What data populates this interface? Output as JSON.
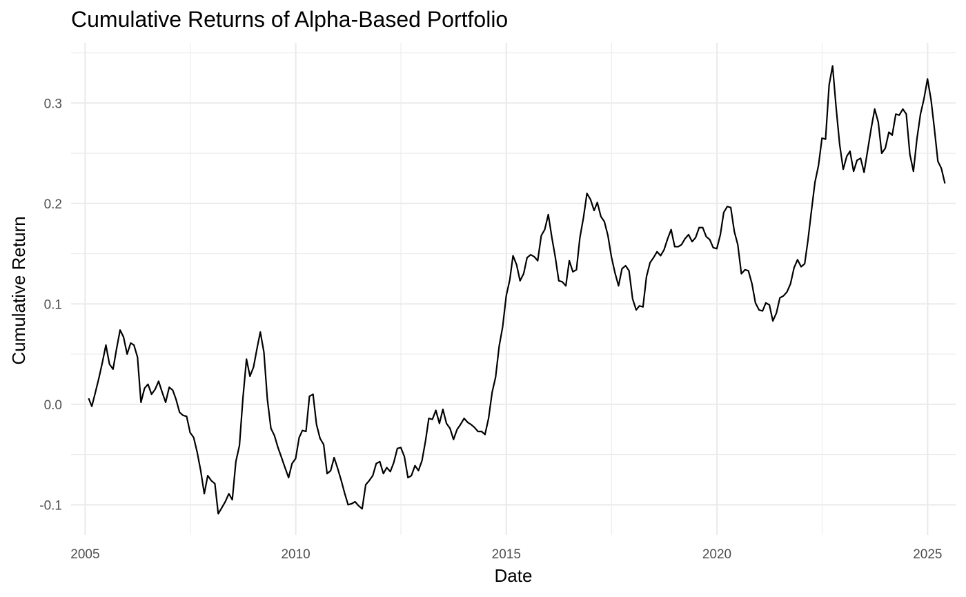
{
  "chart_data": {
    "type": "line",
    "title": "Cumulative Returns of Alpha-Based Portfolio",
    "xlabel": "Date",
    "ylabel": "Cumulative Return",
    "xlim": [
      "2004-09-01",
      "2025-09-01"
    ],
    "ylim": [
      -0.13,
      0.36
    ],
    "x_ticks": [
      {
        "value": "2005-01-01",
        "label": "2005"
      },
      {
        "value": "2010-01-01",
        "label": "2010"
      },
      {
        "value": "2015-01-01",
        "label": "2015"
      },
      {
        "value": "2020-01-01",
        "label": "2020"
      },
      {
        "value": "2025-01-01",
        "label": "2025"
      }
    ],
    "x_minor_ticks": [
      "2007-07-01",
      "2012-07-01",
      "2017-07-01",
      "2022-07-01"
    ],
    "y_ticks": [
      {
        "value": -0.1,
        "label": "-0.1"
      },
      {
        "value": 0.0,
        "label": "0.0"
      },
      {
        "value": 0.1,
        "label": "0.1"
      },
      {
        "value": 0.2,
        "label": "0.2"
      },
      {
        "value": 0.3,
        "label": "0.3"
      }
    ],
    "y_minor_ticks": [
      -0.05,
      0.05,
      0.15,
      0.25,
      0.35
    ],
    "grid": true,
    "legend": "none",
    "line_color": "#000000",
    "series": [
      {
        "x_start": "2005-01-31",
        "frequency": "monthly",
        "values": [
          0.006,
          -0.002,
          0.012,
          0.026,
          0.042,
          0.059,
          0.04,
          0.035,
          0.055,
          0.074,
          0.067,
          0.05,
          0.061,
          0.059,
          0.047,
          0.002,
          0.016,
          0.02,
          0.01,
          0.015,
          0.023,
          0.012,
          0.002,
          0.017,
          0.014,
          0.005,
          -0.008,
          -0.011,
          -0.012,
          -0.028,
          -0.033,
          -0.048,
          -0.066,
          -0.089,
          -0.071,
          -0.076,
          -0.079,
          -0.109,
          -0.103,
          -0.097,
          -0.089,
          -0.095,
          -0.057,
          -0.041,
          0.006,
          0.045,
          0.028,
          0.037,
          0.056,
          0.072,
          0.052,
          0.005,
          -0.024,
          -0.031,
          -0.043,
          -0.053,
          -0.063,
          -0.073,
          -0.059,
          -0.054,
          -0.033,
          -0.026,
          -0.027,
          0.008,
          0.01,
          -0.02,
          -0.034,
          -0.04,
          -0.069,
          -0.066,
          -0.053,
          -0.064,
          -0.076,
          -0.088,
          -0.1,
          -0.099,
          -0.097,
          -0.101,
          -0.104,
          -0.08,
          -0.076,
          -0.071,
          -0.059,
          -0.057,
          -0.069,
          -0.063,
          -0.067,
          -0.058,
          -0.044,
          -0.043,
          -0.052,
          -0.073,
          -0.071,
          -0.061,
          -0.066,
          -0.056,
          -0.036,
          -0.014,
          -0.015,
          -0.006,
          -0.019,
          -0.005,
          -0.019,
          -0.024,
          -0.035,
          -0.025,
          -0.02,
          -0.014,
          -0.018,
          -0.02,
          -0.023,
          -0.027,
          -0.027,
          -0.03,
          -0.014,
          0.012,
          0.027,
          0.058,
          0.077,
          0.108,
          0.124,
          0.148,
          0.139,
          0.123,
          0.13,
          0.146,
          0.149,
          0.147,
          0.143,
          0.168,
          0.174,
          0.189,
          0.166,
          0.147,
          0.123,
          0.122,
          0.118,
          0.143,
          0.132,
          0.134,
          0.166,
          0.186,
          0.21,
          0.204,
          0.193,
          0.201,
          0.187,
          0.182,
          0.168,
          0.147,
          0.131,
          0.118,
          0.135,
          0.138,
          0.133,
          0.105,
          0.094,
          0.098,
          0.097,
          0.127,
          0.141,
          0.146,
          0.152,
          0.148,
          0.154,
          0.165,
          0.174,
          0.157,
          0.157,
          0.159,
          0.165,
          0.169,
          0.162,
          0.166,
          0.176,
          0.176,
          0.167,
          0.164,
          0.156,
          0.155,
          0.169,
          0.191,
          0.197,
          0.196,
          0.172,
          0.159,
          0.13,
          0.134,
          0.133,
          0.12,
          0.101,
          0.094,
          0.093,
          0.101,
          0.099,
          0.083,
          0.091,
          0.106,
          0.108,
          0.112,
          0.12,
          0.136,
          0.144,
          0.137,
          0.14,
          0.163,
          0.193,
          0.221,
          0.238,
          0.265,
          0.264,
          0.318,
          0.337,
          0.295,
          0.259,
          0.234,
          0.247,
          0.252,
          0.232,
          0.243,
          0.245,
          0.231,
          0.253,
          0.275,
          0.294,
          0.281,
          0.25,
          0.255,
          0.271,
          0.268,
          0.289,
          0.288,
          0.294,
          0.289,
          0.249,
          0.232,
          0.264,
          0.289,
          0.304,
          0.324,
          0.303,
          0.275,
          0.242,
          0.235,
          0.22
        ]
      }
    ]
  }
}
